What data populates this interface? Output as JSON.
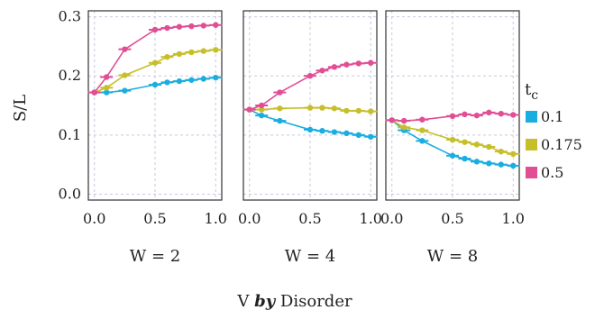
{
  "chart_data": {
    "type": "line",
    "ylabel": "S/L",
    "xlabel_parts": [
      "V ",
      "by",
      " Disorder"
    ],
    "xlim": [
      -0.05,
      1.05
    ],
    "ylim": [
      -0.01,
      0.31
    ],
    "x_ticks": [
      "0.0",
      "0.5",
      "1.0"
    ],
    "y_ticks": [
      "0.0",
      "0.1",
      "0.2",
      "0.3"
    ],
    "grid": true,
    "legend": {
      "title_main": "t",
      "title_sub": "c",
      "position": "right"
    },
    "series_styles": [
      {
        "name": "0.1",
        "color": "#1aaee0"
      },
      {
        "name": "0.175",
        "color": "#c7bf2a"
      },
      {
        "name": "0.5",
        "color": "#e14e96"
      }
    ],
    "panels": [
      {
        "label": "W = 2",
        "x": [
          0.0,
          0.1,
          0.25,
          0.5,
          0.6,
          0.7,
          0.8,
          0.9,
          1.0
        ],
        "series": [
          {
            "name": "0.1",
            "values": [
              0.172,
              0.172,
              0.175,
              0.185,
              0.189,
              0.191,
              0.193,
              0.195,
              0.197
            ]
          },
          {
            "name": "0.175",
            "values": [
              0.172,
              0.18,
              0.201,
              0.222,
              0.232,
              0.237,
              0.24,
              0.242,
              0.244
            ]
          },
          {
            "name": "0.5",
            "values": [
              0.172,
              0.198,
              0.245,
              0.278,
              0.281,
              0.283,
              0.284,
              0.285,
              0.286
            ]
          }
        ]
      },
      {
        "label": "W = 4",
        "x": [
          0.0,
          0.1,
          0.25,
          0.5,
          0.6,
          0.7,
          0.8,
          0.9,
          1.0
        ],
        "series": [
          {
            "name": "0.1",
            "values": [
              0.143,
              0.133,
              0.124,
              0.109,
              0.107,
              0.105,
              0.103,
              0.1,
              0.097
            ]
          },
          {
            "name": "0.175",
            "values": [
              0.143,
              0.143,
              0.145,
              0.146,
              0.146,
              0.145,
              0.141,
              0.141,
              0.14
            ]
          },
          {
            "name": "0.5",
            "values": [
              0.143,
              0.15,
              0.172,
              0.2,
              0.209,
              0.215,
              0.219,
              0.221,
              0.222
            ]
          }
        ]
      },
      {
        "label": "W = 8",
        "x": [
          0.0,
          0.1,
          0.25,
          0.5,
          0.6,
          0.7,
          0.8,
          0.9,
          1.0
        ],
        "series": [
          {
            "name": "0.1",
            "values": [
              0.125,
              0.108,
              0.09,
              0.065,
              0.06,
              0.055,
              0.052,
              0.05,
              0.048
            ]
          },
          {
            "name": "0.175",
            "values": [
              0.125,
              0.113,
              0.108,
              0.092,
              0.088,
              0.084,
              0.08,
              0.072,
              0.068
            ]
          },
          {
            "name": "0.5",
            "values": [
              0.125,
              0.124,
              0.126,
              0.132,
              0.135,
              0.133,
              0.138,
              0.136,
              0.134
            ]
          }
        ]
      }
    ]
  }
}
